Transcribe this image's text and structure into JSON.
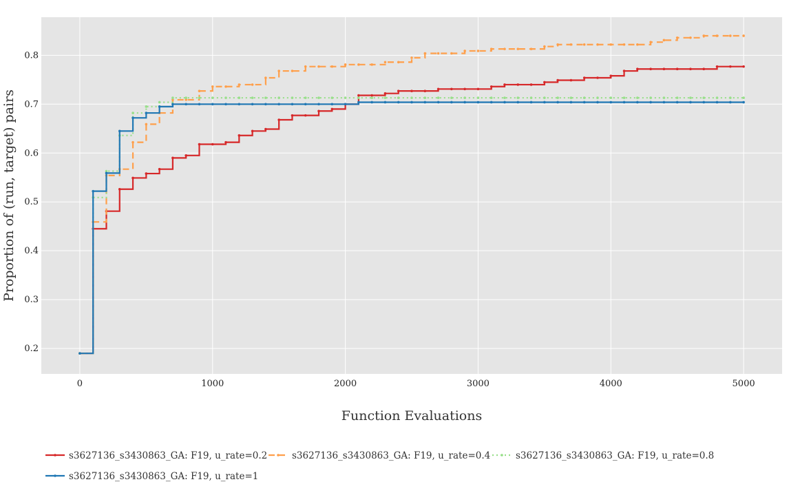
{
  "chart_data": {
    "type": "line",
    "step": true,
    "xlabel": "Function Evaluations",
    "ylabel": "Proportion of (run, target) pairs",
    "xlim": [
      -290,
      5290
    ],
    "ylim": [
      0.148,
      0.878
    ],
    "xticks": [
      0,
      1000,
      2000,
      3000,
      4000,
      5000
    ],
    "yticks": [
      0.2,
      0.3,
      0.4,
      0.5,
      0.6,
      0.7,
      0.8
    ],
    "grid": true,
    "background": "#e5e5e5",
    "legend_position": "bottom",
    "series": [
      {
        "name": "s3627136_s3430863_GA: F19, u_rate=0.2",
        "color": "#d62728",
        "dash": "solid",
        "x": [
          0,
          100,
          200,
          300,
          400,
          500,
          600,
          700,
          800,
          900,
          1000,
          1100,
          1200,
          1300,
          1400,
          1500,
          1600,
          1700,
          1800,
          1900,
          2000,
          2100,
          2200,
          2300,
          2400,
          2500,
          2600,
          2700,
          2800,
          2900,
          3000,
          3100,
          3200,
          3300,
          3400,
          3500,
          3600,
          3700,
          3800,
          3900,
          4000,
          4100,
          4200,
          4300,
          4400,
          4500,
          4600,
          4700,
          4800,
          4900,
          5000
        ],
        "y": [
          0.19,
          0.445,
          0.481,
          0.526,
          0.549,
          0.558,
          0.567,
          0.59,
          0.595,
          0.618,
          0.618,
          0.622,
          0.636,
          0.645,
          0.649,
          0.668,
          0.677,
          0.677,
          0.686,
          0.69,
          0.7,
          0.718,
          0.718,
          0.722,
          0.727,
          0.727,
          0.727,
          0.731,
          0.731,
          0.731,
          0.731,
          0.736,
          0.74,
          0.74,
          0.74,
          0.745,
          0.749,
          0.749,
          0.754,
          0.754,
          0.758,
          0.768,
          0.772,
          0.772,
          0.772,
          0.772,
          0.772,
          0.772,
          0.777,
          0.777,
          0.777
        ]
      },
      {
        "name": "s3627136_s3430863_GA: F19, u_rate=0.4",
        "color": "#ff9f4a",
        "dash": "dashed",
        "x": [
          0,
          100,
          200,
          300,
          400,
          500,
          600,
          700,
          800,
          900,
          1000,
          1100,
          1200,
          1300,
          1400,
          1500,
          1600,
          1700,
          1800,
          1900,
          2000,
          2100,
          2200,
          2300,
          2400,
          2500,
          2600,
          2700,
          2800,
          2900,
          3000,
          3100,
          3200,
          3300,
          3400,
          3500,
          3600,
          3700,
          3800,
          3900,
          4000,
          4100,
          4200,
          4300,
          4400,
          4500,
          4600,
          4700,
          4800,
          4900,
          5000
        ],
        "y": [
          0.19,
          0.459,
          0.554,
          0.567,
          0.622,
          0.659,
          0.682,
          0.709,
          0.709,
          0.727,
          0.736,
          0.736,
          0.74,
          0.74,
          0.754,
          0.768,
          0.768,
          0.777,
          0.777,
          0.777,
          0.781,
          0.781,
          0.781,
          0.786,
          0.786,
          0.795,
          0.804,
          0.804,
          0.804,
          0.809,
          0.809,
          0.813,
          0.813,
          0.813,
          0.813,
          0.818,
          0.822,
          0.822,
          0.822,
          0.822,
          0.822,
          0.822,
          0.822,
          0.827,
          0.831,
          0.836,
          0.836,
          0.84,
          0.84,
          0.84,
          0.84
        ]
      },
      {
        "name": "s3627136_s3430863_GA: F19, u_rate=0.8",
        "color": "#98df8a",
        "dash": "dotted",
        "x": [
          0,
          100,
          200,
          300,
          400,
          500,
          600,
          700,
          800,
          900,
          1000,
          1100,
          1200,
          1300,
          1400,
          1500,
          1600,
          1700,
          1800,
          1900,
          2000,
          2100,
          2200,
          2300,
          2400,
          2500,
          2600,
          2700,
          2800,
          2900,
          3000,
          3100,
          3200,
          3300,
          3400,
          3500,
          3600,
          3700,
          3800,
          3900,
          4000,
          4100,
          4200,
          4300,
          4400,
          4500,
          4600,
          4700,
          4800,
          4900,
          5000
        ],
        "y": [
          0.19,
          0.509,
          0.563,
          0.636,
          0.682,
          0.695,
          0.704,
          0.713,
          0.713,
          0.713,
          0.713,
          0.713,
          0.713,
          0.713,
          0.713,
          0.713,
          0.713,
          0.713,
          0.713,
          0.713,
          0.713,
          0.713,
          0.713,
          0.713,
          0.713,
          0.713,
          0.713,
          0.713,
          0.713,
          0.713,
          0.713,
          0.713,
          0.713,
          0.713,
          0.713,
          0.713,
          0.713,
          0.713,
          0.713,
          0.713,
          0.713,
          0.713,
          0.713,
          0.713,
          0.713,
          0.713,
          0.713,
          0.713,
          0.713,
          0.713,
          0.713
        ]
      },
      {
        "name": "s3627136_s3430863_GA: F19, u_rate=1",
        "color": "#1f77b4",
        "dash": "solid",
        "x": [
          0,
          100,
          200,
          300,
          400,
          500,
          600,
          700,
          800,
          900,
          1000,
          1100,
          1200,
          1300,
          1400,
          1500,
          1600,
          1700,
          1800,
          1900,
          2000,
          2100,
          2200,
          2300,
          2400,
          2500,
          2600,
          2700,
          2800,
          2900,
          3000,
          3100,
          3200,
          3300,
          3400,
          3500,
          3600,
          3700,
          3800,
          3900,
          4000,
          4100,
          4200,
          4300,
          4400,
          4500,
          4600,
          4700,
          4800,
          4900,
          5000
        ],
        "y": [
          0.19,
          0.522,
          0.559,
          0.645,
          0.672,
          0.682,
          0.695,
          0.7,
          0.7,
          0.7,
          0.7,
          0.7,
          0.7,
          0.7,
          0.7,
          0.7,
          0.7,
          0.7,
          0.7,
          0.7,
          0.7,
          0.704,
          0.704,
          0.704,
          0.704,
          0.704,
          0.704,
          0.704,
          0.704,
          0.704,
          0.704,
          0.704,
          0.704,
          0.704,
          0.704,
          0.704,
          0.704,
          0.704,
          0.704,
          0.704,
          0.704,
          0.704,
          0.704,
          0.704,
          0.704,
          0.704,
          0.704,
          0.704,
          0.704,
          0.704,
          0.704
        ]
      }
    ]
  }
}
